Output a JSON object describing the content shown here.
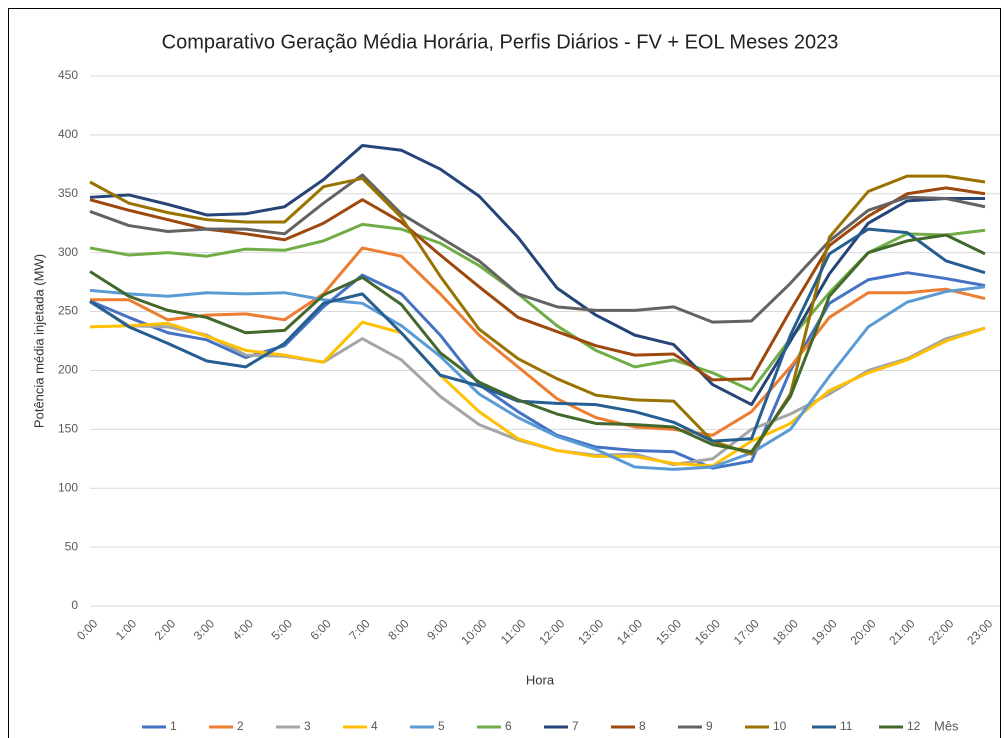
{
  "chart_data": {
    "type": "line",
    "title": "Comparativo Geração Média Horária, Perfis Diários - FV + EOL Meses 2023",
    "x_label": "Hora",
    "y_label": "Potência média injetada (MW)",
    "legend_title": "Mês",
    "categories": [
      "0:00",
      "1:00",
      "2:00",
      "3:00",
      "4:00",
      "5:00",
      "6:00",
      "7:00",
      "8:00",
      "9:00",
      "10:00",
      "11:00",
      "12:00",
      "13:00",
      "14:00",
      "15:00",
      "16:00",
      "17:00",
      "18:00",
      "19:00",
      "20:00",
      "21:00",
      "22:00",
      "23:00"
    ],
    "ylim": [
      0,
      450
    ],
    "yticks": [
      0,
      50,
      100,
      150,
      200,
      250,
      300,
      350,
      400,
      450
    ],
    "grid": true,
    "legend": "bottom",
    "series": [
      {
        "name": "1",
        "color": "#4472c4",
        "values": [
          259,
          245,
          232,
          226,
          211,
          221,
          254,
          281,
          265,
          230,
          188,
          165,
          145,
          135,
          132,
          131,
          117,
          123,
          200,
          257,
          277,
          283,
          278,
          272
        ]
      },
      {
        "name": "2",
        "color": "#ed7d31",
        "values": [
          260,
          260,
          243,
          247,
          248,
          243,
          265,
          304,
          297,
          265,
          230,
          203,
          176,
          160,
          152,
          150,
          145,
          165,
          203,
          245,
          266,
          266,
          269,
          261
        ]
      },
      {
        "name": "3",
        "color": "#a5a5a5",
        "values": [
          258,
          238,
          237,
          230,
          213,
          212,
          207,
          227,
          209,
          178,
          154,
          141,
          132,
          128,
          129,
          120,
          125,
          150,
          163,
          180,
          200,
          210,
          227,
          236
        ]
      },
      {
        "name": "4",
        "color": "#ffc000",
        "values": [
          237,
          238,
          240,
          229,
          217,
          213,
          207,
          241,
          232,
          196,
          165,
          142,
          132,
          127,
          127,
          121,
          119,
          140,
          155,
          183,
          198,
          209,
          225,
          236
        ]
      },
      {
        "name": "5",
        "color": "#5b9bd5",
        "values": [
          268,
          265,
          263,
          266,
          265,
          266,
          260,
          257,
          238,
          212,
          180,
          160,
          144,
          133,
          118,
          116,
          118,
          130,
          150,
          195,
          237,
          258,
          267,
          271
        ]
      },
      {
        "name": "6",
        "color": "#70ad47",
        "values": [
          304,
          298,
          300,
          297,
          303,
          302,
          310,
          324,
          320,
          308,
          289,
          265,
          238,
          217,
          203,
          209,
          198,
          183,
          227,
          266,
          300,
          316,
          315,
          319
        ]
      },
      {
        "name": "7",
        "color": "#264478",
        "values": [
          347,
          349,
          341,
          332,
          333,
          339,
          362,
          391,
          387,
          371,
          348,
          313,
          270,
          247,
          230,
          222,
          188,
          171,
          225,
          282,
          325,
          344,
          346,
          346
        ]
      },
      {
        "name": "8",
        "color": "#9e480e",
        "values": [
          345,
          336,
          328,
          320,
          316,
          311,
          325,
          345,
          326,
          298,
          271,
          245,
          233,
          221,
          213,
          214,
          192,
          193,
          251,
          306,
          331,
          350,
          355,
          350
        ]
      },
      {
        "name": "9",
        "color": "#636363",
        "values": [
          335,
          323,
          318,
          320,
          320,
          316,
          342,
          366,
          333,
          313,
          293,
          265,
          254,
          251,
          251,
          254,
          241,
          242,
          274,
          310,
          336,
          347,
          346,
          339
        ]
      },
      {
        "name": "10",
        "color": "#997300",
        "values": [
          360,
          342,
          334,
          328,
          326,
          326,
          356,
          363,
          330,
          280,
          235,
          210,
          193,
          179,
          175,
          174,
          140,
          129,
          180,
          313,
          352,
          365,
          365,
          360
        ]
      },
      {
        "name": "11",
        "color": "#255e91",
        "values": [
          259,
          237,
          223,
          208,
          203,
          223,
          257,
          265,
          232,
          196,
          187,
          174,
          172,
          171,
          165,
          156,
          140,
          142,
          230,
          299,
          320,
          317,
          293,
          283
        ]
      },
      {
        "name": "12",
        "color": "#43682b",
        "values": [
          284,
          263,
          251,
          245,
          232,
          234,
          264,
          279,
          256,
          215,
          190,
          175,
          163,
          155,
          154,
          152,
          137,
          131,
          178,
          263,
          300,
          310,
          315,
          299
        ]
      }
    ]
  }
}
